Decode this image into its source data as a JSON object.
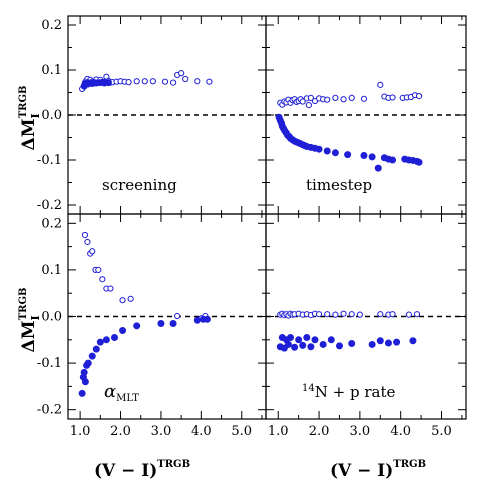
{
  "figure": {
    "ylabel_main": "ΔM",
    "ylabel_sub": "I",
    "ylabel_sup": "TRGB",
    "xlabel_main": "(V − I)",
    "xlabel_sup": "TRGB"
  },
  "chart_data": [
    {
      "type": "scatter",
      "panel_label": "screening",
      "xlim": [
        0.7,
        5.6
      ],
      "ylim": [
        -0.22,
        0.22
      ],
      "xticks": [
        "1.0",
        "2.0",
        "3.0",
        "4.0",
        "5.0"
      ],
      "yticks": [
        "0.2",
        "0.1",
        "0.0",
        "-0.1",
        "-0.2"
      ],
      "color": "#1f1fd6",
      "series": [
        {
          "marker": "open",
          "x": [
            1.05,
            1.1,
            1.12,
            1.15,
            1.18,
            1.2,
            1.25,
            1.3,
            1.35,
            1.4,
            1.45,
            1.5,
            1.55,
            1.6,
            1.65,
            1.7,
            1.75,
            1.8,
            1.9,
            2.0,
            2.1,
            2.2,
            2.4,
            2.6,
            2.8,
            3.1,
            3.3,
            3.4,
            3.5,
            3.6,
            3.9,
            4.2
          ],
          "y": [
            0.058,
            0.066,
            0.072,
            0.076,
            0.08,
            0.072,
            0.078,
            0.074,
            0.073,
            0.079,
            0.072,
            0.078,
            0.073,
            0.074,
            0.085,
            0.076,
            0.072,
            0.073,
            0.074,
            0.075,
            0.074,
            0.073,
            0.075,
            0.075,
            0.075,
            0.074,
            0.072,
            0.089,
            0.093,
            0.08,
            0.075,
            0.074
          ]
        },
        {
          "marker": "filled",
          "x": [
            1.1,
            1.12,
            1.15,
            1.18,
            1.2,
            1.25,
            1.3,
            1.35,
            1.4,
            1.5,
            1.6,
            1.7
          ],
          "y": [
            0.064,
            0.068,
            0.07,
            0.072,
            0.069,
            0.071,
            0.07,
            0.072,
            0.071,
            0.072,
            0.071,
            0.072
          ]
        }
      ]
    },
    {
      "type": "scatter",
      "panel_label": "timestep",
      "xlim": [
        0.7,
        5.6
      ],
      "ylim": [
        -0.22,
        0.22
      ],
      "xticks": [
        "1.0",
        "2.0",
        "3.0",
        "4.0",
        "5.0"
      ],
      "yticks": [],
      "color": "#1f1fd6",
      "series": [
        {
          "marker": "open",
          "x": [
            1.05,
            1.1,
            1.15,
            1.2,
            1.25,
            1.3,
            1.35,
            1.4,
            1.45,
            1.5,
            1.55,
            1.6,
            1.7,
            1.75,
            1.8,
            1.9,
            2.0,
            2.1,
            2.2,
            2.4,
            2.6,
            2.8,
            3.1,
            3.5,
            3.6,
            3.7,
            3.8,
            4.05,
            4.15,
            4.25,
            4.35,
            4.45
          ],
          "y": [
            0.027,
            0.023,
            0.03,
            0.028,
            0.034,
            0.027,
            0.033,
            0.035,
            0.029,
            0.031,
            0.035,
            0.03,
            0.037,
            0.022,
            0.038,
            0.031,
            0.037,
            0.035,
            0.034,
            0.038,
            0.035,
            0.038,
            0.036,
            0.067,
            0.041,
            0.038,
            0.039,
            0.038,
            0.039,
            0.04,
            0.044,
            0.042
          ]
        },
        {
          "marker": "filled",
          "x": [
            1.02,
            1.05,
            1.08,
            1.1,
            1.13,
            1.16,
            1.2,
            1.23,
            1.27,
            1.3,
            1.35,
            1.4,
            1.45,
            1.5,
            1.55,
            1.6,
            1.65,
            1.7,
            1.8,
            1.9,
            2.0,
            2.2,
            2.4,
            2.7,
            3.1,
            3.3,
            3.45,
            3.6,
            3.7,
            3.8,
            4.1,
            4.2,
            4.3,
            4.4,
            4.45
          ],
          "y": [
            -0.005,
            -0.012,
            -0.018,
            -0.025,
            -0.03,
            -0.035,
            -0.04,
            -0.045,
            -0.048,
            -0.052,
            -0.055,
            -0.058,
            -0.06,
            -0.062,
            -0.064,
            -0.066,
            -0.068,
            -0.07,
            -0.072,
            -0.074,
            -0.076,
            -0.08,
            -0.084,
            -0.088,
            -0.09,
            -0.093,
            -0.118,
            -0.095,
            -0.098,
            -0.1,
            -0.098,
            -0.1,
            -0.101,
            -0.103,
            -0.105
          ]
        }
      ]
    },
    {
      "type": "scatter",
      "panel_label": "α",
      "panel_label_sub": "MLT",
      "xlim": [
        0.7,
        5.6
      ],
      "ylim": [
        -0.22,
        0.22
      ],
      "xticks": [
        "1.0",
        "2.0",
        "3.0",
        "4.0",
        "5.0"
      ],
      "yticks": [
        "0.2",
        "0.1",
        "0.0",
        "-0.1",
        "-0.2"
      ],
      "color": "#1f1fd6",
      "series": [
        {
          "marker": "open",
          "x": [
            1.12,
            1.18,
            1.25,
            1.3,
            1.38,
            1.45,
            1.55,
            1.65,
            1.75,
            2.05,
            2.25,
            3.4,
            4.0,
            4.1
          ],
          "y": [
            0.175,
            0.16,
            0.135,
            0.14,
            0.1,
            0.1,
            0.08,
            0.06,
            0.06,
            0.035,
            0.038,
            0.001,
            -0.004,
            0.001
          ]
        },
        {
          "marker": "filled",
          "x": [
            1.05,
            1.08,
            1.1,
            1.13,
            1.16,
            1.2,
            1.3,
            1.4,
            1.5,
            1.65,
            1.85,
            2.05,
            2.4,
            3.0,
            3.3,
            3.9,
            4.05,
            4.15
          ],
          "y": [
            -0.165,
            -0.13,
            -0.12,
            -0.14,
            -0.105,
            -0.1,
            -0.085,
            -0.07,
            -0.055,
            -0.05,
            -0.045,
            -0.03,
            -0.02,
            -0.015,
            -0.015,
            -0.008,
            -0.006,
            -0.006
          ]
        }
      ]
    },
    {
      "type": "scatter",
      "panel_label": "N + p rate",
      "panel_label_sup": "14",
      "xlim": [
        0.7,
        5.6
      ],
      "ylim": [
        -0.22,
        0.22
      ],
      "xticks": [
        "1.0",
        "2.0",
        "3.0",
        "4.0",
        "5.0"
      ],
      "yticks": [],
      "color": "#1f1fd6",
      "series": [
        {
          "marker": "open",
          "x": [
            1.05,
            1.1,
            1.15,
            1.2,
            1.25,
            1.3,
            1.35,
            1.4,
            1.5,
            1.6,
            1.7,
            1.8,
            1.9,
            2.0,
            2.2,
            2.4,
            2.6,
            2.8,
            3.0,
            3.5,
            3.7,
            3.8,
            4.2,
            4.4
          ],
          "y": [
            0.004,
            0.006,
            0.003,
            0.005,
            0.002,
            0.006,
            0.004,
            0.005,
            0.006,
            0.004,
            0.005,
            0.003,
            0.006,
            0.005,
            0.005,
            0.004,
            0.006,
            0.005,
            0.004,
            0.005,
            0.004,
            0.005,
            0.004,
            0.005
          ]
        },
        {
          "marker": "filled",
          "x": [
            1.05,
            1.1,
            1.15,
            1.2,
            1.25,
            1.3,
            1.4,
            1.5,
            1.6,
            1.7,
            1.8,
            1.9,
            2.1,
            2.3,
            2.5,
            2.8,
            3.3,
            3.5,
            3.7,
            3.9,
            4.3
          ],
          "y": [
            -0.065,
            -0.045,
            -0.068,
            -0.05,
            -0.06,
            -0.045,
            -0.066,
            -0.05,
            -0.062,
            -0.045,
            -0.065,
            -0.05,
            -0.06,
            -0.05,
            -0.063,
            -0.058,
            -0.06,
            -0.052,
            -0.057,
            -0.055,
            -0.052
          ]
        }
      ]
    }
  ]
}
